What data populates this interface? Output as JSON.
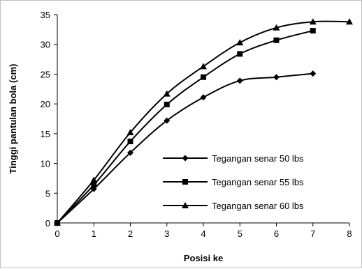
{
  "chart_data": {
    "type": "line",
    "title": "",
    "xlabel": "Posisi ke",
    "ylabel": "Tinggi pantulan bola (cm)",
    "xlim": [
      0,
      8
    ],
    "ylim": [
      0,
      35
    ],
    "xticks": [
      "0",
      "1",
      "2",
      "3",
      "4",
      "5",
      "6",
      "7",
      "8"
    ],
    "yticks": [
      "0",
      "5",
      "10",
      "15",
      "20",
      "25",
      "30",
      "35"
    ],
    "grid": false,
    "legend_position": "bottom-right",
    "series": [
      {
        "name": "Tegangan senar 50 lbs",
        "marker": "diamond",
        "color": "#000000",
        "x": [
          0,
          1,
          2,
          3,
          4,
          5,
          6,
          7
        ],
        "values": [
          0,
          5.7,
          11.8,
          17.2,
          21.1,
          23.9,
          24.5,
          25.1
        ]
      },
      {
        "name": "Tegangan senar 55 lbs",
        "marker": "square",
        "color": "#000000",
        "x": [
          0,
          1,
          2,
          3,
          4,
          5,
          6,
          7
        ],
        "values": [
          0,
          6.4,
          13.7,
          19.9,
          24.5,
          28.4,
          30.7,
          32.3
        ]
      },
      {
        "name": "Tegangan senar 60 lbs",
        "marker": "triangle",
        "color": "#000000",
        "x": [
          0,
          1,
          2,
          3,
          4,
          5,
          6,
          7,
          8
        ],
        "values": [
          0,
          7.2,
          15.2,
          21.7,
          26.3,
          30.3,
          32.8,
          33.8,
          33.8
        ]
      }
    ]
  }
}
